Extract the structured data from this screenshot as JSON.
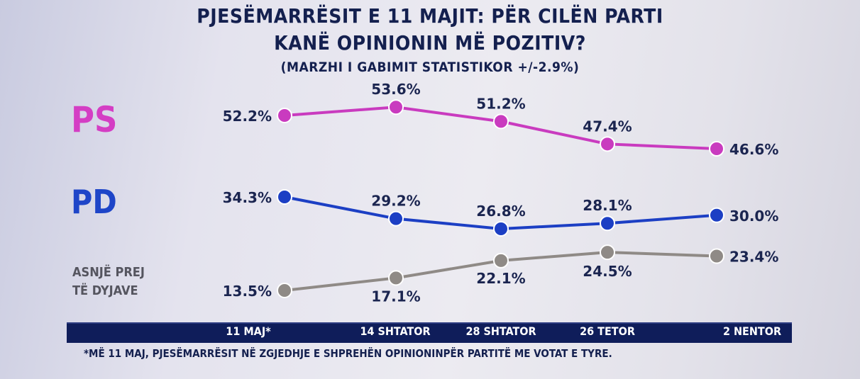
{
  "chart_data": {
    "type": "line",
    "title": "PJESËMARRËSIT E 11 MAJIT: PËR CILËN PARTI",
    "title_line2": "KANË OPINIONIN MË POZITIV?",
    "subtitle": "(MARZHI I GABIMIT STATISTIKOR +/-2.9%)",
    "categories": [
      "11 MAJ*",
      "14 SHTATOR",
      "28 SHTATOR",
      "26 TETOR",
      "2 NENTOR"
    ],
    "series": [
      {
        "name": "PS",
        "color": "#c93bbf",
        "values": [
          52.2,
          53.6,
          51.2,
          47.4,
          46.6
        ],
        "labels": [
          "52.2%",
          "53.6%",
          "51.2%",
          "47.4%",
          "46.6%"
        ]
      },
      {
        "name": "PD",
        "color": "#1c3fc4",
        "values": [
          34.3,
          29.2,
          26.8,
          28.1,
          30.0
        ],
        "labels": [
          "34.3%",
          "29.2%",
          "26.8%",
          "28.1%",
          "30.0%"
        ]
      },
      {
        "name": "ASNJË PREJ TË DYJAVE",
        "name_line1": "ASNJË PREJ",
        "name_line2": "TË DYJAVE",
        "color": "#8f8a86",
        "values": [
          13.5,
          17.1,
          22.1,
          24.5,
          23.4
        ],
        "labels": [
          "13.5%",
          "17.1%",
          "22.1%",
          "24.5%",
          "23.4%"
        ]
      }
    ],
    "footnote": "*MË 11 MAJ, PJESËMARRËSIT NË ZGJEDHJE E SHPREHËN OPINIONINPËR PARTITË ME VOTAT E TYRE.",
    "grid": false,
    "legend": "left"
  }
}
